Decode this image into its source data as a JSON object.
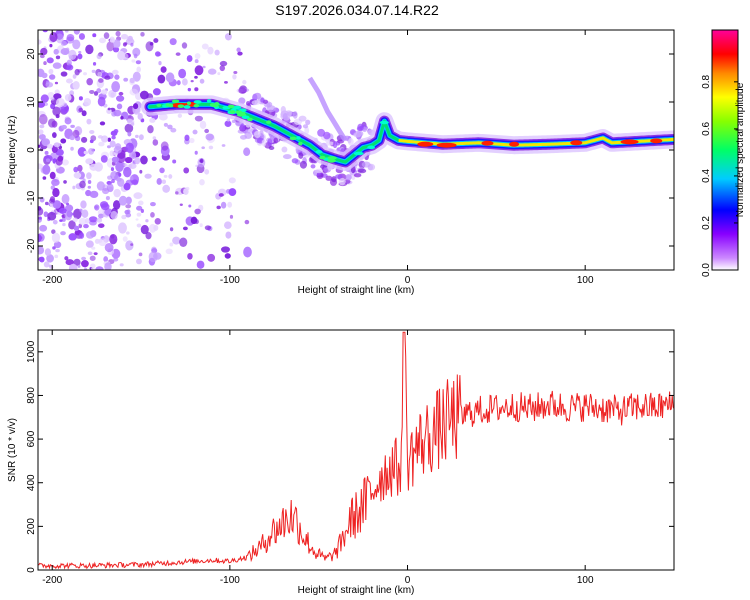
{
  "chart_data": [
    {
      "type": "heatmap",
      "title": "S197.2026.034.07.14.R22",
      "xlabel": "Height of straight line (km)",
      "ylabel": "Frequency (Hz)",
      "xlim": [
        -208,
        150
      ],
      "ylim": [
        -25,
        25
      ],
      "xticks": [
        -200,
        -100,
        0,
        100
      ],
      "yticks": [
        -20,
        -10,
        0,
        10,
        20
      ],
      "colorbar": {
        "label": "Normalized spectral amplitude",
        "range": [
          0,
          1
        ],
        "ticks": [
          0.0,
          0.2,
          0.4,
          0.6,
          0.8
        ],
        "tick_labels": [
          "0.0",
          "0.2",
          "0.4",
          "0.6",
          "0.8"
        ],
        "colors": [
          "#ffffff",
          "#9900ff",
          "#0000ff",
          "#00ffff",
          "#00ff00",
          "#ffff00",
          "#ff0000",
          "#ff00aa"
        ]
      },
      "ridge": {
        "x": [
          -145,
          -130,
          -110,
          -95,
          -85,
          -75,
          -65,
          -55,
          -48,
          -40,
          -35,
          -30,
          -25,
          -20,
          -16,
          -13,
          -10,
          -5,
          0,
          20,
          40,
          60,
          80,
          100,
          110,
          115,
          130,
          150
        ],
        "y": [
          9,
          9.5,
          9.5,
          8,
          6.5,
          5,
          3,
          1,
          -1,
          -2,
          -2.5,
          -1,
          0.5,
          1,
          2,
          6,
          3,
          2,
          1.8,
          1.2,
          1.5,
          1,
          1.2,
          1.5,
          2.5,
          1.5,
          1.8,
          2.2
        ]
      },
      "secondary_ridge": {
        "x": [
          -55,
          -50,
          -45,
          -40,
          -35
        ],
        "y": [
          15,
          12,
          8,
          5,
          2
        ]
      }
    },
    {
      "type": "line",
      "xlabel": "Height of straight line (km)",
      "ylabel": "SNR (10 * v/v)",
      "xlim": [
        -208,
        150
      ],
      "ylim": [
        0,
        1100
      ],
      "xticks": [
        -200,
        -100,
        0,
        100
      ],
      "yticks": [
        0,
        200,
        400,
        600,
        800,
        1000
      ],
      "color": "#ee2222",
      "series": [
        {
          "name": "SNR",
          "x": [
            -208,
            -180,
            -150,
            -130,
            -110,
            -100,
            -90,
            -82,
            -78,
            -72,
            -66,
            -62,
            -58,
            -52,
            -46,
            -40,
            -36,
            -32,
            -28,
            -24,
            -20,
            -16,
            -12,
            -8,
            -5,
            -3,
            -2,
            0,
            5,
            10,
            15,
            20,
            25,
            30,
            35,
            40,
            50,
            60,
            70,
            80,
            90,
            100,
            110,
            120,
            130,
            140,
            150
          ],
          "y": [
            20,
            20,
            25,
            35,
            45,
            40,
            60,
            110,
            160,
            200,
            250,
            220,
            150,
            80,
            50,
            80,
            150,
            230,
            260,
            300,
            360,
            420,
            450,
            480,
            460,
            520,
            1080,
            500,
            560,
            600,
            630,
            660,
            690,
            700,
            720,
            730,
            740,
            750,
            740,
            760,
            745,
            750,
            740,
            730,
            750,
            745,
            760
          ]
        }
      ]
    }
  ]
}
